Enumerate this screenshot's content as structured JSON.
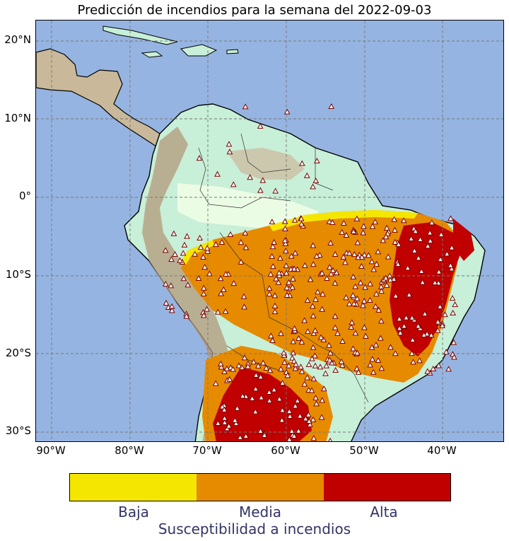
{
  "title": "Predicción de incendios para la semana del 2022-09-03",
  "map": {
    "region": "South America / Central America",
    "projection": "PlateCarree",
    "lon_range": [
      -92,
      -32
    ],
    "lat_range": [
      -31,
      22
    ],
    "gridlines": true,
    "ocean_color": "#96b4e1",
    "lat_ticks": [
      "20°N",
      "10°N",
      "0°",
      "10°S",
      "20°S",
      "30°S"
    ],
    "lon_ticks": [
      "90°W",
      "80°W",
      "70°W",
      "60°W",
      "50°W",
      "40°W"
    ],
    "marker_icon": "fire-warning-icon"
  },
  "colorbar": {
    "title": "Susceptibilidad a incendios",
    "levels": [
      {
        "label": "Baja",
        "color": "#f5e600"
      },
      {
        "label": "Media",
        "color": "#e68a00"
      },
      {
        "label": "Alta",
        "color": "#c00000"
      }
    ]
  }
}
